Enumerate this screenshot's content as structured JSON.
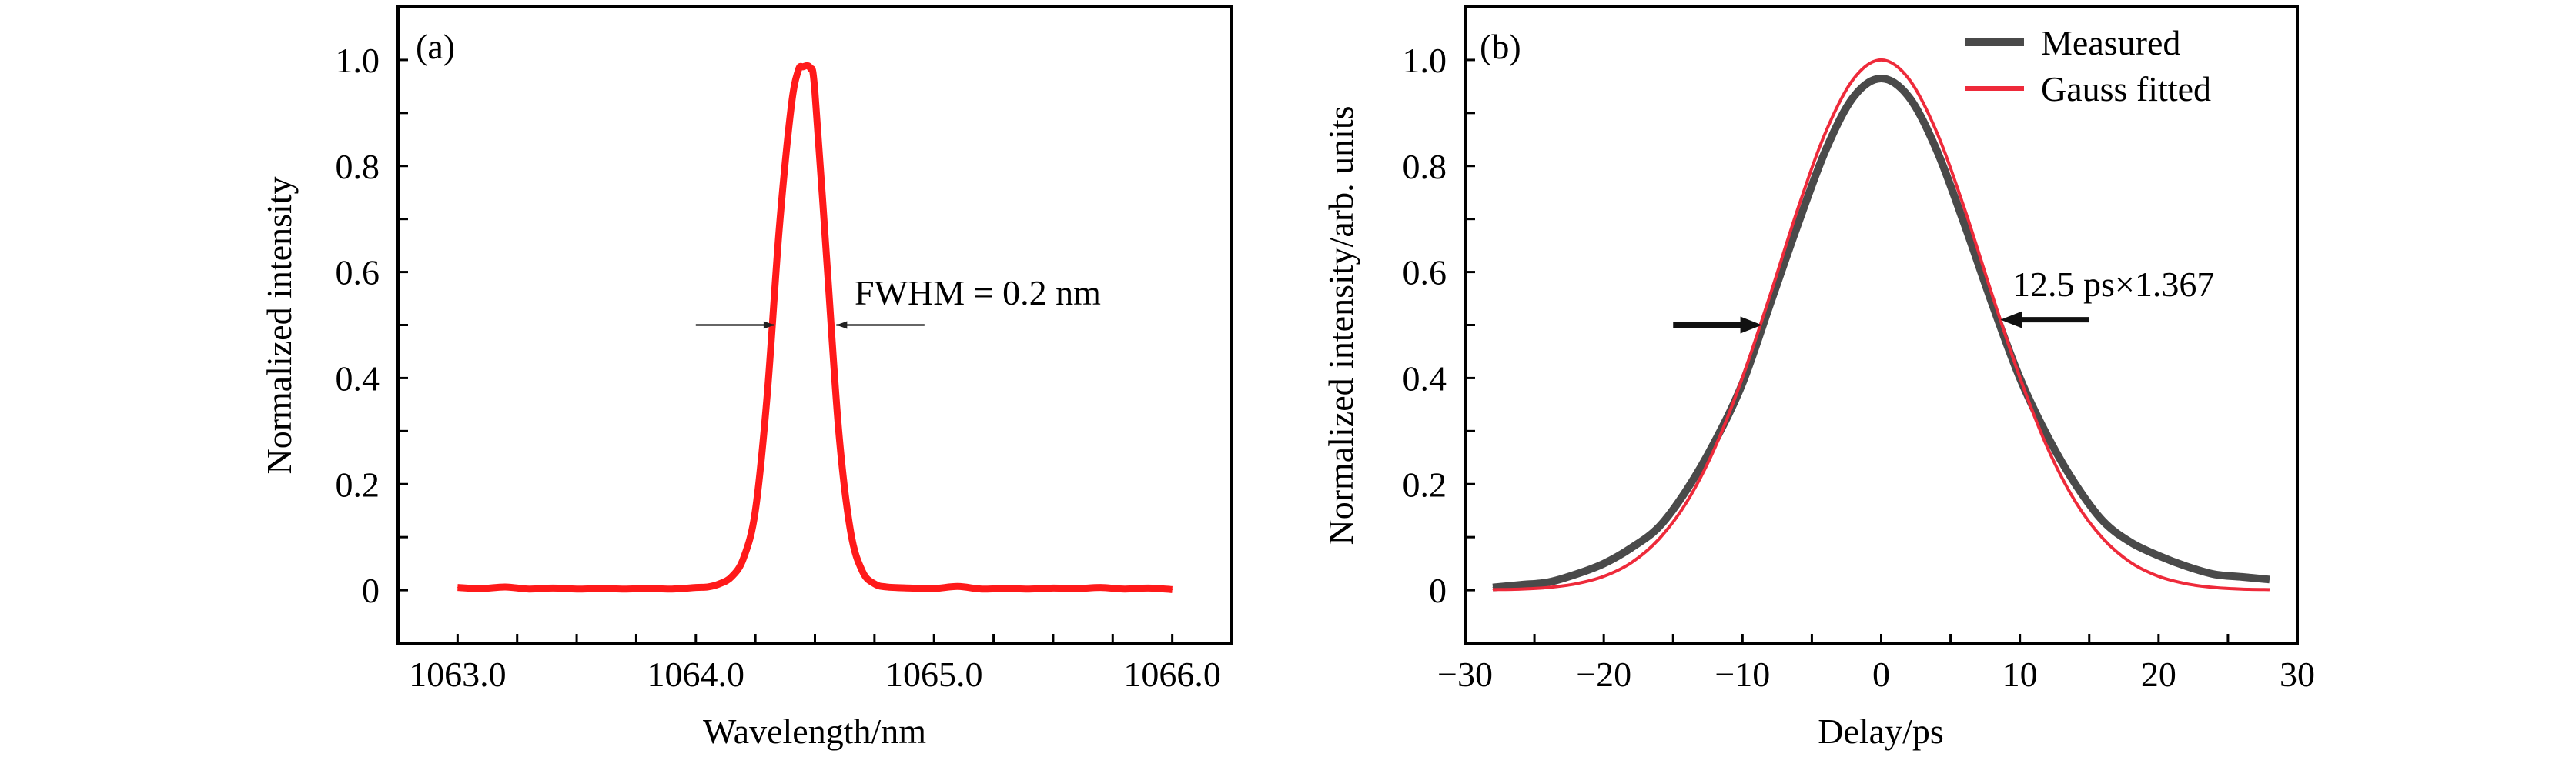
{
  "colors": {
    "spectrum": "#ff1a1a",
    "measured": "#4a4a4a",
    "gauss": "#ee2a3a",
    "axis": "#000000"
  },
  "chart_data": [
    {
      "type": "line",
      "panel_label": "(a)",
      "xlabel": "Wavelength/nm",
      "ylabel": "Normalized intensity",
      "xlim": [
        1062.75,
        1066.25
      ],
      "ylim": [
        -0.1,
        1.1
      ],
      "xticks": [
        1063.0,
        1064.0,
        1065.0,
        1066.0
      ],
      "xtick_labels": [
        "1063.0",
        "1064.0",
        "1065.0",
        "1066.0"
      ],
      "x_minor_step": 0.25,
      "yticks": [
        0,
        0.2,
        0.4,
        0.6,
        0.8,
        1.0
      ],
      "ytick_labels": [
        "0",
        "0.2",
        "0.4",
        "0.6",
        "0.8",
        "1.0"
      ],
      "y_minor_step": 0.1,
      "grid": false,
      "annotation": {
        "text": "FWHM = 0.2 nm",
        "y": 0.5,
        "left_arrow_x": [
          1064.0,
          1064.33
        ],
        "right_arrow_x": [
          1064.96,
          1064.59
        ]
      },
      "series": [
        {
          "x": [
            1063.0,
            1063.1,
            1063.2,
            1063.3,
            1063.4,
            1063.5,
            1063.6,
            1063.7,
            1063.8,
            1063.9,
            1064.0,
            1064.05,
            1064.1,
            1064.15,
            1064.2,
            1064.25,
            1064.3,
            1064.35,
            1064.4,
            1064.43,
            1064.45,
            1064.48,
            1064.5,
            1064.55,
            1064.6,
            1064.65,
            1064.7,
            1064.75,
            1064.8,
            1064.9,
            1065.0,
            1065.1,
            1065.2,
            1065.3,
            1065.4,
            1065.5,
            1065.6,
            1065.7,
            1065.8,
            1065.9,
            1066.0
          ],
          "y": [
            0.005,
            0.003,
            0.006,
            0.002,
            0.004,
            0.002,
            0.003,
            0.002,
            0.003,
            0.002,
            0.005,
            0.006,
            0.012,
            0.025,
            0.06,
            0.15,
            0.37,
            0.68,
            0.91,
            0.98,
            0.987,
            0.985,
            0.94,
            0.62,
            0.3,
            0.11,
            0.035,
            0.012,
            0.006,
            0.004,
            0.003,
            0.007,
            0.002,
            0.003,
            0.002,
            0.004,
            0.003,
            0.005,
            0.002,
            0.004,
            0.001
          ]
        }
      ]
    },
    {
      "type": "line",
      "panel_label": "(b)",
      "xlabel": "Delay/ps",
      "ylabel": "Normalized intensity/arb. units",
      "xlim": [
        -30,
        30
      ],
      "ylim": [
        -0.1,
        1.1
      ],
      "xticks": [
        -30,
        -20,
        -10,
        0,
        10,
        20,
        30
      ],
      "xtick_labels": [
        "−30",
        "−20",
        "−10",
        "0",
        "10",
        "20",
        "30"
      ],
      "x_minor_step": 5,
      "yticks": [
        0,
        0.2,
        0.4,
        0.6,
        0.8,
        1.0
      ],
      "ytick_labels": [
        "0",
        "0.2",
        "0.4",
        "0.6",
        "0.8",
        "1.0"
      ],
      "y_minor_step": 0.1,
      "grid": false,
      "legend": {
        "position": "top-right"
      },
      "annotation": {
        "text": "12.5 ps×1.367",
        "left_arrow": {
          "x": [
            -15,
            -8.6
          ],
          "y": 0.5
        },
        "right_arrow": {
          "x": [
            15,
            8.6
          ],
          "y": 0.51
        }
      },
      "series": [
        {
          "name": "Measured",
          "x": [
            -28,
            -26,
            -24,
            -22,
            -20,
            -18,
            -16,
            -14,
            -12,
            -10,
            -8,
            -6,
            -4,
            -2,
            0,
            2,
            4,
            6,
            8,
            10,
            12,
            14,
            16,
            18,
            20,
            22,
            24,
            26,
            28
          ],
          "y": [
            0.005,
            0.01,
            0.015,
            0.03,
            0.05,
            0.08,
            0.12,
            0.19,
            0.28,
            0.39,
            0.54,
            0.69,
            0.83,
            0.93,
            0.965,
            0.93,
            0.83,
            0.69,
            0.54,
            0.4,
            0.29,
            0.2,
            0.13,
            0.09,
            0.065,
            0.045,
            0.03,
            0.025,
            0.02
          ]
        },
        {
          "name": "Gauss fitted",
          "x": [
            -28,
            -26,
            -24,
            -22,
            -20,
            -18,
            -16,
            -14,
            -12,
            -10,
            -8,
            -6,
            -4,
            -2,
            0,
            2,
            4,
            6,
            8,
            10,
            12,
            14,
            16,
            18,
            20,
            22,
            24,
            26,
            28
          ],
          "y": [
            0.001,
            0.002,
            0.005,
            0.012,
            0.026,
            0.052,
            0.097,
            0.167,
            0.268,
            0.401,
            0.557,
            0.72,
            0.864,
            0.964,
            1.0,
            0.964,
            0.864,
            0.72,
            0.557,
            0.401,
            0.268,
            0.167,
            0.097,
            0.052,
            0.026,
            0.012,
            0.005,
            0.002,
            0.001
          ]
        }
      ]
    }
  ]
}
